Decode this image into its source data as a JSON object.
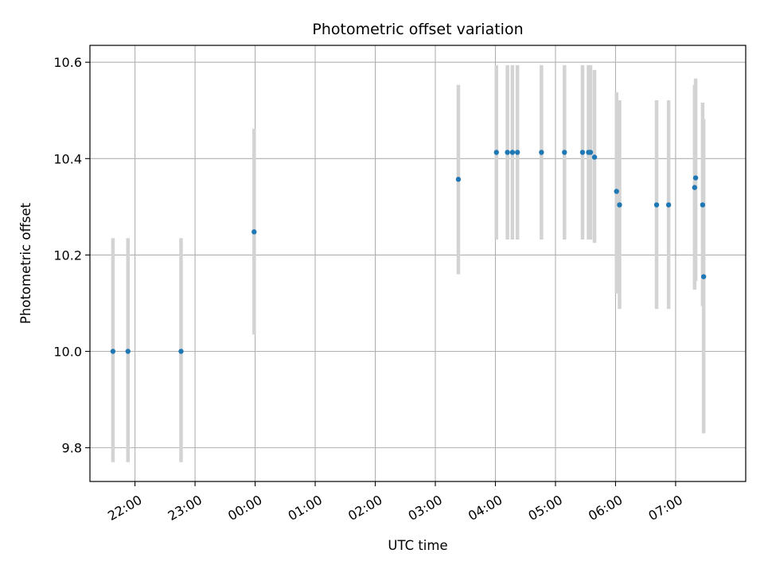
{
  "chart_data": {
    "type": "scatter",
    "title": "Photometric offset variation",
    "xlabel": "UTC time",
    "ylabel": "Photometric offset",
    "grid": true,
    "x_is_time": true,
    "xlim": [
      "21:15",
      "08:10"
    ],
    "ylim": [
      9.73,
      10.635
    ],
    "xticks": [
      "22:00",
      "23:00",
      "00:00",
      "01:00",
      "02:00",
      "03:00",
      "04:00",
      "05:00",
      "06:00",
      "07:00"
    ],
    "yticks": [
      "9.8",
      "10.0",
      "10.2",
      "10.4",
      "10.6"
    ],
    "marker_color": "#1f77b4",
    "errorbar_color": "#d3d3d3",
    "points": [
      {
        "x": "21:38",
        "y": 10.0,
        "yerr_low": 9.77,
        "yerr_high": 10.235
      },
      {
        "x": "21:53",
        "y": 10.0,
        "yerr_low": 9.77,
        "yerr_high": 10.235
      },
      {
        "x": "22:46",
        "y": 10.0,
        "yerr_low": 9.77,
        "yerr_high": 10.235
      },
      {
        "x": "23:59",
        "y": 10.248,
        "yerr_low": 10.035,
        "yerr_high": 10.462
      },
      {
        "x": "03:23",
        "y": 10.357,
        "yerr_low": 10.16,
        "yerr_high": 10.553
      },
      {
        "x": "04:01",
        "y": 10.413,
        "yerr_low": 10.232,
        "yerr_high": 10.594
      },
      {
        "x": "04:12",
        "y": 10.413,
        "yerr_low": 10.232,
        "yerr_high": 10.594
      },
      {
        "x": "04:17",
        "y": 10.413,
        "yerr_low": 10.232,
        "yerr_high": 10.594
      },
      {
        "x": "04:22",
        "y": 10.413,
        "yerr_low": 10.232,
        "yerr_high": 10.594
      },
      {
        "x": "04:46",
        "y": 10.413,
        "yerr_low": 10.232,
        "yerr_high": 10.594
      },
      {
        "x": "05:09",
        "y": 10.413,
        "yerr_low": 10.232,
        "yerr_high": 10.594
      },
      {
        "x": "05:27",
        "y": 10.413,
        "yerr_low": 10.232,
        "yerr_high": 10.594
      },
      {
        "x": "05:33",
        "y": 10.413,
        "yerr_low": 10.232,
        "yerr_high": 10.594
      },
      {
        "x": "05:35",
        "y": 10.413,
        "yerr_low": 10.232,
        "yerr_high": 10.594
      },
      {
        "x": "05:39",
        "y": 10.403,
        "yerr_low": 10.225,
        "yerr_high": 10.584
      },
      {
        "x": "06:01",
        "y": 10.332,
        "yerr_low": 10.12,
        "yerr_high": 10.538
      },
      {
        "x": "06:04",
        "y": 10.304,
        "yerr_low": 10.088,
        "yerr_high": 10.521
      },
      {
        "x": "06:41",
        "y": 10.304,
        "yerr_low": 10.088,
        "yerr_high": 10.521
      },
      {
        "x": "06:53",
        "y": 10.304,
        "yerr_low": 10.088,
        "yerr_high": 10.521
      },
      {
        "x": "07:19",
        "y": 10.34,
        "yerr_low": 10.128,
        "yerr_high": 10.553
      },
      {
        "x": "07:20",
        "y": 10.36,
        "yerr_low": 10.146,
        "yerr_high": 10.566
      },
      {
        "x": "07:27",
        "y": 10.304,
        "yerr_low": 10.094,
        "yerr_high": 10.516
      },
      {
        "x": "07:28",
        "y": 10.155,
        "yerr_low": 9.83,
        "yerr_high": 10.482
      }
    ]
  }
}
